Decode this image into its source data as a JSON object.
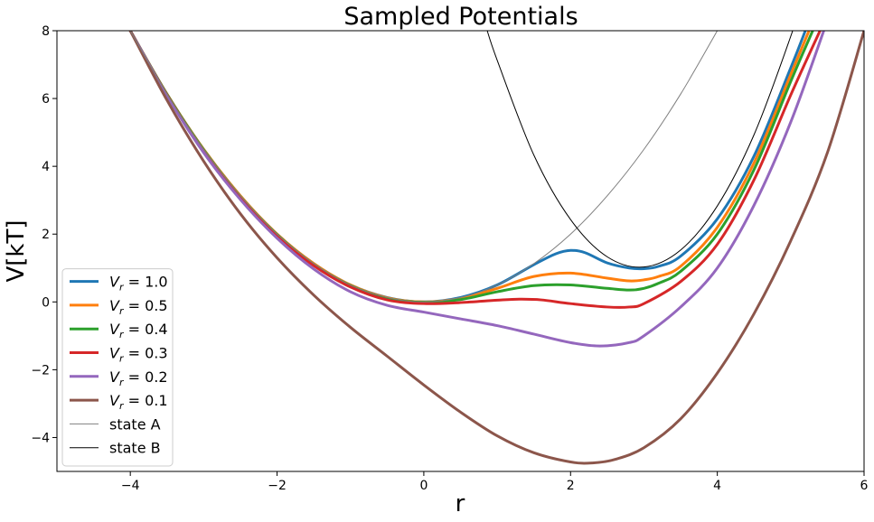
{
  "chart_data": {
    "type": "line",
    "title": "Sampled Potentials",
    "xlabel": "r",
    "ylabel": "V[kT]",
    "xlim": [
      -5,
      6
    ],
    "ylim": [
      -5,
      8
    ],
    "xticks": [
      -4,
      -2,
      0,
      2,
      4,
      6
    ],
    "yticks": [
      -4,
      -2,
      0,
      2,
      4,
      6,
      8
    ],
    "grid": false,
    "legend_position": "lower-left",
    "series": [
      {
        "name": "V_r = 1.0",
        "color": "#1f77b4",
        "x": [
          -4,
          -3.5,
          -3,
          -2.5,
          -2,
          -1.5,
          -1,
          -0.5,
          0,
          0.5,
          1,
          1.5,
          1.8,
          2,
          2.2,
          2.5,
          2.8,
          3,
          3.2,
          3.5,
          4,
          4.5,
          5,
          5.2
        ],
        "y": [
          8,
          6.13,
          4.5,
          3.13,
          2,
          1.13,
          0.5,
          0.13,
          0,
          0.13,
          0.5,
          1.1,
          1.42,
          1.52,
          1.45,
          1.15,
          1.0,
          0.98,
          1.05,
          1.35,
          2.45,
          4.3,
          6.9,
          8.0
        ]
      },
      {
        "name": "V_r = 0.5",
        "color": "#ff7f0e",
        "x": [
          -4,
          -3.5,
          -3,
          -2.5,
          -2,
          -1.5,
          -1,
          -0.5,
          0,
          0.5,
          1,
          1.5,
          2,
          2.5,
          2.8,
          3,
          3.2,
          3.5,
          4,
          4.5,
          5,
          5.25
        ],
        "y": [
          8,
          6.13,
          4.5,
          3.13,
          2,
          1.13,
          0.5,
          0.12,
          0,
          0.1,
          0.4,
          0.75,
          0.85,
          0.7,
          0.62,
          0.65,
          0.75,
          1.05,
          2.2,
          4.1,
          6.7,
          8.0
        ]
      },
      {
        "name": "V_r = 0.4",
        "color": "#2ca02c",
        "x": [
          -4,
          -3.5,
          -3,
          -2.5,
          -2,
          -1.5,
          -1,
          -0.5,
          0,
          0.5,
          1,
          1.5,
          2,
          2.5,
          2.8,
          3,
          3.2,
          3.5,
          4,
          4.5,
          5,
          5.3
        ],
        "y": [
          8,
          6.12,
          4.48,
          3.1,
          1.98,
          1.1,
          0.48,
          0.1,
          -0.01,
          0.07,
          0.3,
          0.48,
          0.5,
          0.4,
          0.35,
          0.4,
          0.55,
          0.9,
          2.0,
          3.9,
          6.5,
          8.0
        ]
      },
      {
        "name": "V_r = 0.3",
        "color": "#d62728",
        "x": [
          -4,
          -3.5,
          -3,
          -2.5,
          -2,
          -1.5,
          -1,
          -0.5,
          0,
          0.5,
          1,
          1.3,
          1.6,
          2,
          2.5,
          2.8,
          3,
          3.5,
          4,
          4.5,
          5,
          5.4
        ],
        "y": [
          8,
          6.1,
          4.45,
          3.07,
          1.95,
          1.07,
          0.44,
          0.06,
          -0.05,
          -0.02,
          0.05,
          0.08,
          0.06,
          -0.05,
          -0.15,
          -0.15,
          -0.05,
          0.6,
          1.7,
          3.6,
          6.1,
          8.0
        ]
      },
      {
        "name": "V_r = 0.2",
        "color": "#9467bd",
        "x": [
          -4,
          -3.5,
          -3,
          -2.5,
          -2,
          -1.5,
          -1,
          -0.5,
          0,
          0.5,
          1,
          1.5,
          2,
          2.4,
          2.8,
          3,
          3.5,
          4,
          4.5,
          5,
          5.5
        ],
        "y": [
          8,
          6.08,
          4.4,
          3.02,
          1.88,
          0.97,
          0.3,
          -0.1,
          -0.3,
          -0.5,
          -0.7,
          -0.95,
          -1.2,
          -1.3,
          -1.2,
          -1.0,
          -0.15,
          1.0,
          2.85,
          5.3,
          8.3
        ]
      },
      {
        "name": "V_r = 0.1",
        "color": "#8c564b",
        "x": [
          -4,
          -3.5,
          -3,
          -2.5,
          -2,
          -1.5,
          -1,
          -0.5,
          0,
          0.5,
          1,
          1.5,
          2,
          2.3,
          2.6,
          3,
          3.5,
          4,
          4.5,
          5,
          5.5,
          6
        ],
        "y": [
          8,
          5.95,
          4.15,
          2.6,
          1.3,
          0.2,
          -0.75,
          -1.6,
          -2.45,
          -3.25,
          -3.95,
          -4.45,
          -4.72,
          -4.75,
          -4.65,
          -4.3,
          -3.45,
          -2.1,
          -0.35,
          1.8,
          4.4,
          8.0
        ]
      },
      {
        "name": "state A",
        "color": "#7f7f7f",
        "x": [
          -4,
          -3.5,
          -3,
          -2.5,
          -2,
          -1.5,
          -1,
          -0.5,
          0,
          0.5,
          1,
          1.5,
          2,
          2.5,
          3,
          3.5,
          4
        ],
        "y": [
          8,
          6.13,
          4.5,
          3.13,
          2,
          1.13,
          0.5,
          0.13,
          0,
          0.13,
          0.5,
          1.13,
          2,
          3.13,
          4.5,
          6.13,
          8
        ]
      },
      {
        "name": "state B",
        "color": "#000000",
        "x": [
          0.85,
          1,
          1.5,
          2,
          2.5,
          3,
          3.5,
          4,
          4.5,
          5,
          5.2
        ],
        "y": [
          8.1,
          7.13,
          4.33,
          2.43,
          1.33,
          1.03,
          1.53,
          2.83,
          4.93,
          7.83,
          9.23
        ]
      }
    ]
  }
}
